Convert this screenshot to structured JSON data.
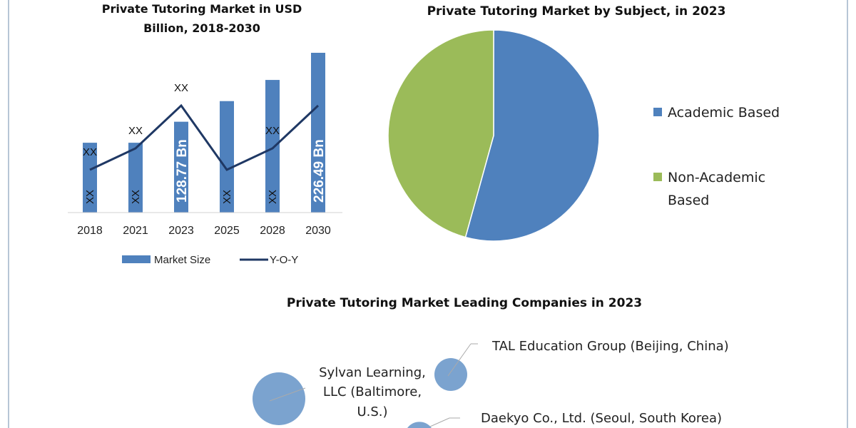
{
  "colors": {
    "bar": "#4f81bd",
    "line": "#1f3864",
    "academic": "#4f81bd",
    "non_academic": "#9bbb59",
    "bubble": "#7ba3cf",
    "frame": "#9fb3c8"
  },
  "chart_data": [
    {
      "type": "bar",
      "title": [
        "Private Tutoring Market in USD",
        "Billion, 2018-2030"
      ],
      "categories": [
        "2018",
        "2021",
        "2023",
        "2025",
        "2028",
        "2030"
      ],
      "series": [
        {
          "name": "Market Size",
          "values": [
            99,
            99,
            128.77,
            158,
            188,
            226.49
          ],
          "labels": [
            "XX",
            "XX",
            "128.77 Bn",
            "XX",
            "XX",
            "226.49 Bn"
          ]
        },
        {
          "name": "Y-O-Y",
          "type": "line",
          "values": [
            1,
            2,
            4,
            1,
            2,
            4
          ],
          "labels": [
            "XX",
            "XX",
            "XX",
            "",
            "XX",
            ""
          ]
        }
      ],
      "legend": [
        "Market Size",
        "Y-O-Y"
      ],
      "legend_position": "bottom",
      "ylim": [
        0,
        230
      ]
    },
    {
      "type": "pie",
      "title": "Private Tutoring Market by Subject, in 2023",
      "slices": [
        {
          "label": "Academic Based",
          "label_lines": [
            "Academic Based"
          ],
          "value": 54.3
        },
        {
          "label": "Non-Academic Based",
          "label_lines": [
            "Non-Academic",
            "Based"
          ],
          "value": 45.7
        }
      ],
      "legend_position": "right"
    },
    {
      "type": "scatter",
      "title": "Private Tutoring Market Leading Companies in 2023",
      "bubbles": [
        {
          "label_lines": [
            "Sylvan Learning,",
            "LLC (Baltimore,",
            "U.S.)"
          ],
          "size": 3
        },
        {
          "label_lines": [
            "TAL Education Group (Beijing, China)"
          ],
          "size": 1.3
        },
        {
          "label_lines": [
            "Daekyo Co., Ltd. (Seoul, South Korea)"
          ],
          "size": 1.2
        }
      ]
    }
  ]
}
